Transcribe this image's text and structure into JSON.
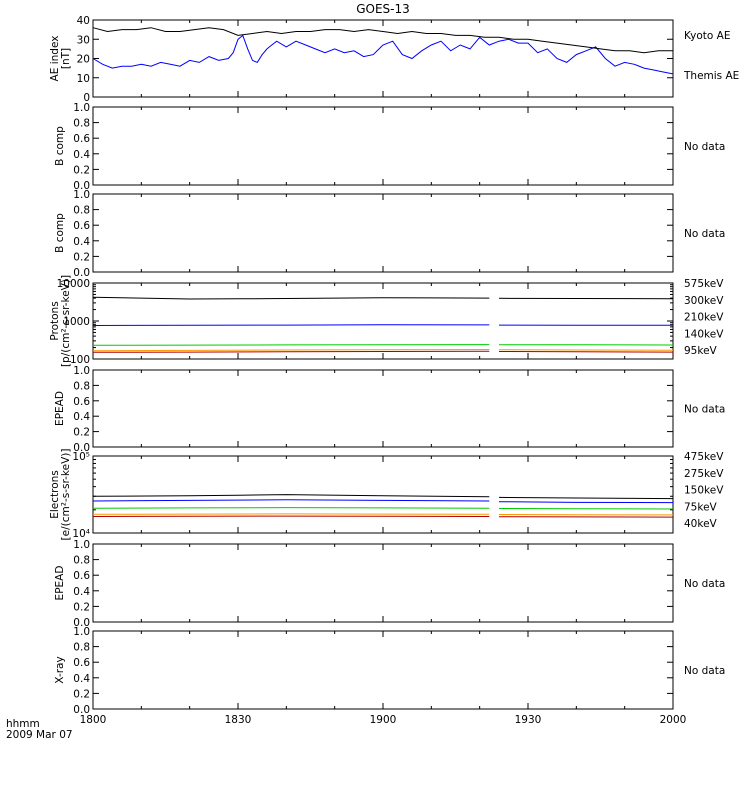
{
  "title": "GOES-13",
  "colors": {
    "kyoto": "#0000ff",
    "themis": "#000000",
    "ch5": "#aa0000",
    "ch4": "#ff9900",
    "ch3": "#00cc00",
    "ch2": "#0000ff",
    "ch1": "#000000",
    "axis": "#000000"
  },
  "time_axis": {
    "unit_label": "hhmm",
    "date_label": "2009 Mar 07",
    "ticks": [
      "1800",
      "1830",
      "1900",
      "1930",
      "2000"
    ]
  },
  "chart_data": [
    {
      "id": "ae",
      "type": "line",
      "ylabel": [
        "AE index",
        "[nT]"
      ],
      "ylim": [
        0,
        40
      ],
      "yticks": [
        "0",
        "10",
        "20",
        "30",
        "40"
      ],
      "x_unit": "minutes after 18:00",
      "series": [
        {
          "name": "Kyoto AE",
          "color": "kyoto",
          "x": [
            0,
            2,
            4,
            6,
            8,
            10,
            12,
            14,
            16,
            18,
            20,
            22,
            24,
            26,
            28,
            29,
            30,
            31,
            32,
            33,
            34,
            35,
            36,
            37,
            38,
            40,
            42,
            44,
            46,
            48,
            50,
            52,
            54,
            56,
            58,
            60,
            62,
            64,
            66,
            68,
            70,
            72,
            74,
            76,
            78,
            80,
            82,
            84,
            86,
            88,
            90,
            92,
            94,
            96,
            98,
            100,
            102,
            104,
            106,
            108,
            110,
            112,
            114,
            116,
            118,
            120
          ],
          "y": [
            20,
            17,
            15,
            16,
            16,
            17,
            16,
            18,
            17,
            16,
            19,
            18,
            21,
            19,
            20,
            23,
            30,
            32,
            25,
            19,
            18,
            22,
            25,
            27,
            29,
            26,
            29,
            27,
            25,
            23,
            25,
            23,
            24,
            21,
            22,
            27,
            29,
            22,
            20,
            24,
            27,
            29,
            24,
            27,
            25,
            31,
            27,
            29,
            30,
            28,
            28,
            23,
            25,
            20,
            18,
            22,
            24,
            26,
            20,
            16,
            18,
            17,
            15,
            14,
            13,
            12
          ]
        },
        {
          "name": "Themis AE",
          "color": "themis",
          "x": [
            0,
            3,
            6,
            9,
            12,
            15,
            18,
            21,
            24,
            27,
            30,
            33,
            36,
            39,
            42,
            45,
            48,
            51,
            54,
            57,
            60,
            63,
            66,
            69,
            72,
            75,
            78,
            81,
            84,
            87,
            90,
            93,
            96,
            99,
            102,
            105,
            108,
            111,
            114,
            117,
            120
          ],
          "y": [
            36,
            34,
            35,
            35,
            36,
            34,
            34,
            35,
            36,
            35,
            32,
            33,
            34,
            33,
            34,
            34,
            35,
            35,
            34,
            35,
            34,
            33,
            34,
            33,
            33,
            32,
            32,
            31,
            31,
            30,
            30,
            29,
            28,
            27,
            26,
            25,
            24,
            24,
            23,
            24,
            24
          ]
        }
      ]
    },
    {
      "id": "b1",
      "type": "line",
      "ylabel": [
        "B comp"
      ],
      "ylim": [
        0,
        1
      ],
      "yticks": [
        "0.0",
        "0.2",
        "0.4",
        "0.6",
        "0.8",
        "1.0"
      ],
      "no_data": "No data",
      "series": []
    },
    {
      "id": "b2",
      "type": "line",
      "ylabel": [
        "B comp"
      ],
      "ylim": [
        0,
        1
      ],
      "yticks": [
        "0.0",
        "0.2",
        "0.4",
        "0.6",
        "0.8",
        "1.0"
      ],
      "no_data": "No data",
      "series": []
    },
    {
      "id": "protons",
      "type": "line",
      "ylabel": [
        "Protons",
        "[p/(cm²-s-sr-keV)]"
      ],
      "yscale": "log",
      "ylim": [
        100,
        10000
      ],
      "yticks": [
        "100",
        "1000",
        "10000"
      ],
      "gap_minutes": [
        82,
        84
      ],
      "series": [
        {
          "name": "575keV",
          "color": "ch5",
          "x": [
            0,
            20,
            40,
            60,
            82,
            84,
            100,
            120
          ],
          "y": [
            150,
            152,
            155,
            158,
            160,
            158,
            155,
            152
          ]
        },
        {
          "name": "300keV",
          "color": "ch4",
          "x": [
            0,
            20,
            40,
            60,
            82,
            84,
            100,
            120
          ],
          "y": [
            165,
            168,
            172,
            175,
            178,
            176,
            172,
            170
          ]
        },
        {
          "name": "210keV",
          "color": "ch3",
          "x": [
            0,
            20,
            40,
            60,
            82,
            84,
            100,
            120
          ],
          "y": [
            230,
            232,
            235,
            238,
            240,
            238,
            236,
            234
          ]
        },
        {
          "name": "140keV",
          "color": "ch2",
          "x": [
            0,
            20,
            40,
            60,
            82,
            84,
            100,
            120
          ],
          "y": [
            760,
            770,
            780,
            800,
            790,
            780,
            775,
            770
          ]
        },
        {
          "name": "95keV",
          "color": "ch1",
          "x": [
            0,
            10,
            20,
            30,
            40,
            50,
            60,
            70,
            82,
            84,
            100,
            120
          ],
          "y": [
            4200,
            4000,
            3800,
            3850,
            3900,
            4000,
            4100,
            4050,
            4000,
            3950,
            3900,
            3850
          ]
        }
      ]
    },
    {
      "id": "epead1",
      "type": "line",
      "ylabel": [
        "EPEAD"
      ],
      "ylim": [
        0,
        1
      ],
      "yticks": [
        "0.0",
        "0.2",
        "0.4",
        "0.6",
        "0.8",
        "1.0"
      ],
      "no_data": "No data",
      "series": []
    },
    {
      "id": "electrons",
      "type": "line",
      "ylabel": [
        "Electrons",
        "[e/(cm²-s-sr-keV)]"
      ],
      "yscale": "log",
      "ylim": [
        10000,
        100000
      ],
      "yticks": [
        "10⁴",
        "10⁵"
      ],
      "gap_minutes": [
        82,
        84
      ],
      "series": [
        {
          "name": "475keV",
          "color": "ch5",
          "x": [
            0,
            20,
            40,
            60,
            82,
            84,
            100,
            120
          ],
          "y": [
            16400,
            16500,
            16600,
            16500,
            16400,
            16300,
            16200,
            16100
          ]
        },
        {
          "name": "275keV",
          "color": "ch4",
          "x": [
            0,
            20,
            40,
            60,
            82,
            84,
            100,
            120
          ],
          "y": [
            17500,
            17600,
            17700,
            17600,
            17500,
            17400,
            17300,
            17200
          ]
        },
        {
          "name": "150keV",
          "color": "ch3",
          "x": [
            0,
            20,
            40,
            60,
            82,
            84,
            100,
            120
          ],
          "y": [
            21000,
            21200,
            21400,
            21200,
            21000,
            20800,
            20600,
            20500
          ]
        },
        {
          "name": "75keV",
          "color": "ch2",
          "x": [
            0,
            20,
            40,
            60,
            82,
            84,
            100,
            120
          ],
          "y": [
            26000,
            26500,
            27000,
            26500,
            26000,
            25500,
            25000,
            24800
          ]
        },
        {
          "name": "40keV",
          "color": "ch1",
          "x": [
            0,
            20,
            30,
            40,
            60,
            82,
            84,
            100,
            120
          ],
          "y": [
            30000,
            30500,
            31000,
            31500,
            30500,
            29500,
            29000,
            28500,
            28000
          ]
        }
      ]
    },
    {
      "id": "epead2",
      "type": "line",
      "ylabel": [
        "EPEAD"
      ],
      "ylim": [
        0,
        1
      ],
      "yticks": [
        "0.0",
        "0.2",
        "0.4",
        "0.6",
        "0.8",
        "1.0"
      ],
      "no_data": "No data",
      "series": []
    },
    {
      "id": "xray",
      "type": "line",
      "ylabel": [
        "X-ray"
      ],
      "ylim": [
        0,
        1
      ],
      "yticks": [
        "0.0",
        "0.2",
        "0.4",
        "0.6",
        "0.8",
        "1.0"
      ],
      "no_data": "No data",
      "series": []
    }
  ]
}
